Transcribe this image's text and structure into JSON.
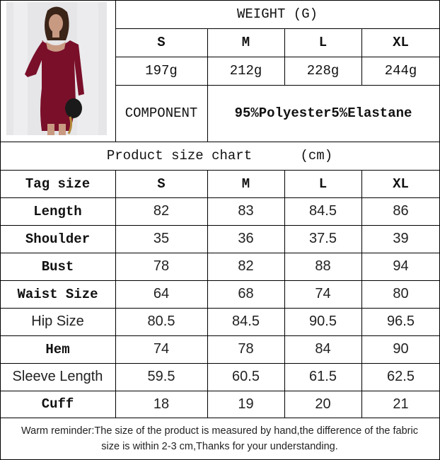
{
  "weight": {
    "title": "WEIGHT (G)",
    "sizes": [
      "S",
      "M",
      "L",
      "XL"
    ],
    "values": [
      "197g",
      "212g",
      "228g",
      "244g"
    ]
  },
  "component": {
    "label": "COMPONENT",
    "value": "95%Polyester5%Elastane"
  },
  "product_image": {
    "dress_color": "#7a0f2a"
  },
  "size_chart": {
    "title": "Product size chart      (cm)",
    "header": [
      "Tag size",
      "S",
      "M",
      "L",
      "XL"
    ],
    "rows": [
      [
        "Length",
        "82",
        "83",
        "84.5",
        "86"
      ],
      [
        "Shoulder",
        "35",
        "36",
        "37.5",
        "39"
      ],
      [
        "Bust",
        "78",
        "82",
        "88",
        "94"
      ],
      [
        "Waist Size",
        "64",
        "68",
        "74",
        "80"
      ],
      [
        "Hip Size",
        "80.5",
        "84.5",
        "90.5",
        "96.5"
      ],
      [
        "Hem",
        "74",
        "78",
        "84",
        "90"
      ],
      [
        "Sleeve Length",
        "59.5",
        "60.5",
        "61.5",
        "62.5"
      ],
      [
        "Cuff",
        "18",
        "19",
        "20",
        "21"
      ]
    ]
  },
  "footer": {
    "line1": "Warm reminder:The size of the product is measured by hand,the difference of the fabric",
    "line2": "size is within 2-3 cm,Thanks for your understanding."
  }
}
